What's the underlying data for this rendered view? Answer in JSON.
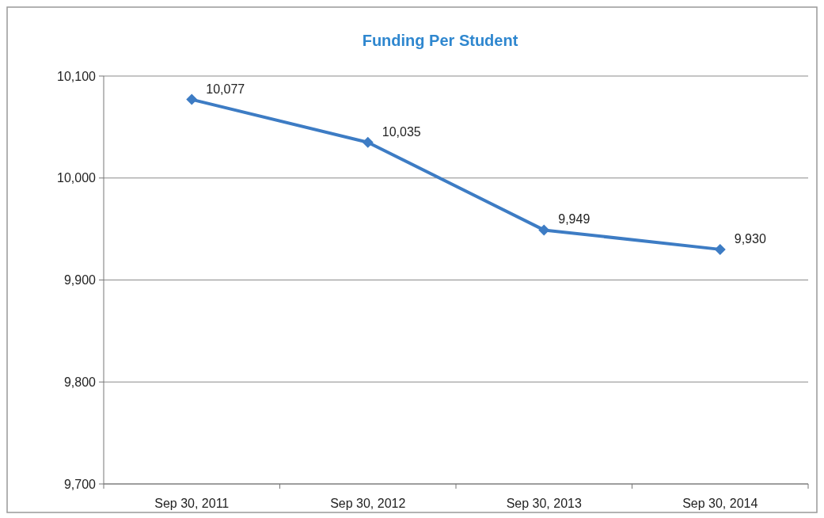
{
  "chart_data": {
    "type": "line",
    "title": "Funding Per Student",
    "categories": [
      "Sep 30, 2011",
      "Sep 30, 2012",
      "Sep 30, 2013",
      "Sep 30, 2014"
    ],
    "series": [
      {
        "color": "#3d7cc4",
        "values": [
          10077,
          10035,
          9949,
          9930
        ],
        "value_labels": [
          "10,077",
          "10,035",
          "9,949",
          "9,930"
        ]
      }
    ],
    "ylim": [
      9700,
      10100
    ],
    "yticks": [
      {
        "value": 9700,
        "label": "9,700"
      },
      {
        "value": 9800,
        "label": "9,800"
      },
      {
        "value": 9900,
        "label": "9,900"
      },
      {
        "value": 10000,
        "label": "10,000"
      },
      {
        "value": 10100,
        "label": "10,100"
      }
    ],
    "grid": "y",
    "marker": "diamond",
    "line_style": "solid"
  }
}
